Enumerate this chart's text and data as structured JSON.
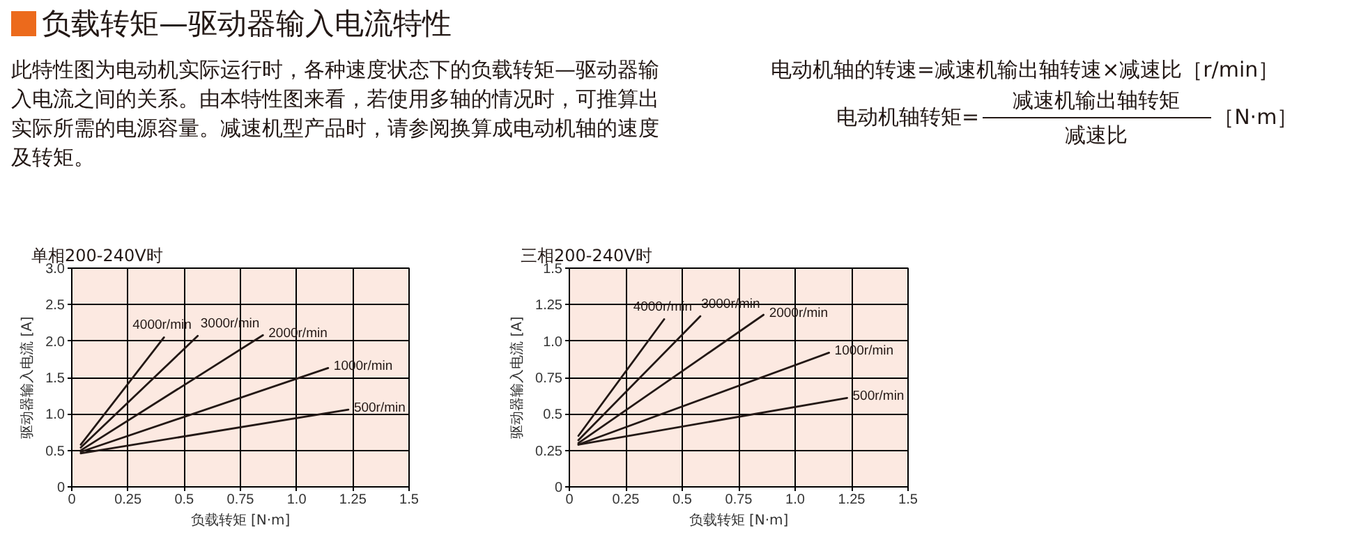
{
  "chart_data": [
    {
      "type": "other",
      "title": "负载转矩—驱动器输入电流特性",
      "annotations": [
        "此特性图为电动机实际运行时，各种速度状态下的负载转矩—驱动器输入电流之间的关系。由本特性图来看，若使用多轴的情况时，可推算出实际所需的电源容量。减速机型产品时，请参阅换算成电动机轴的速度及转矩。",
        "电动机轴的转速=减速机输出轴转速×减速比［r/min］",
        "电动机轴转矩=",
        "减速机输出轴转矩",
        "减速比",
        "［N·m］"
      ]
    },
    {
      "type": "line",
      "title": "单相200-240V时",
      "xlabel": "负载转矩 [N·m]",
      "ylabel": "驱动器输入电流 [A]",
      "xlim": [
        0,
        1.5
      ],
      "ylim": [
        0,
        3
      ],
      "xticks": [
        0,
        0.25,
        0.5,
        0.75,
        {
          "value": 1,
          "label": "1.0"
        },
        1.25,
        1.5
      ],
      "yticks": [
        0,
        0.5,
        {
          "value": 1,
          "label": "1.0"
        },
        1.5,
        {
          "value": 2,
          "label": "2.0"
        },
        2.5,
        {
          "value": 3,
          "label": "3.0"
        }
      ],
      "grid": true,
      "series": [
        {
          "name": "4000r/min",
          "color": "#231815",
          "x": [
            0.04,
            0.41
          ],
          "values": [
            0.58,
            2.05
          ]
        },
        {
          "name": "3000r/min",
          "color": "#231815",
          "x": [
            0.04,
            0.56
          ],
          "values": [
            0.54,
            2.07
          ]
        },
        {
          "name": "2000r/min",
          "color": "#231815",
          "x": [
            0.04,
            0.85
          ],
          "values": [
            0.5,
            2.08
          ]
        },
        {
          "name": "1000r/min",
          "color": "#231815",
          "x": [
            0.04,
            1.14
          ],
          "values": [
            0.48,
            1.63
          ]
        },
        {
          "name": "500r/min",
          "color": "#231815",
          "x": [
            0.04,
            1.23
          ],
          "values": [
            0.46,
            1.06
          ]
        }
      ]
    },
    {
      "type": "line",
      "title": "三相200-240V时",
      "xlabel": "负载转矩 [N·m]",
      "ylabel": "驱动器输入电流 [A]",
      "xlim": [
        0,
        1.5
      ],
      "ylim": [
        0,
        1.5
      ],
      "xticks": [
        0,
        0.25,
        0.5,
        0.75,
        {
          "value": 1,
          "label": "1.0"
        },
        1.25,
        1.5
      ],
      "yticks": [
        0,
        0.25,
        0.5,
        0.75,
        {
          "value": 1,
          "label": "1.0"
        },
        1.25,
        1.5
      ],
      "grid": true,
      "series": [
        {
          "name": "4000r/min",
          "color": "#231815",
          "x": [
            0.04,
            0.42
          ],
          "values": [
            0.35,
            1.15
          ]
        },
        {
          "name": "3000r/min",
          "color": "#231815",
          "x": [
            0.04,
            0.58
          ],
          "values": [
            0.32,
            1.17
          ]
        },
        {
          "name": "2000r/min",
          "color": "#231815",
          "x": [
            0.04,
            0.86
          ],
          "values": [
            0.3,
            1.18
          ]
        },
        {
          "name": "1000r/min",
          "color": "#231815",
          "x": [
            0.04,
            1.15
          ],
          "values": [
            0.29,
            0.92
          ]
        },
        {
          "name": "500r/min",
          "color": "#231815",
          "x": [
            0.04,
            1.23
          ],
          "values": [
            0.29,
            0.61
          ]
        }
      ]
    }
  ]
}
